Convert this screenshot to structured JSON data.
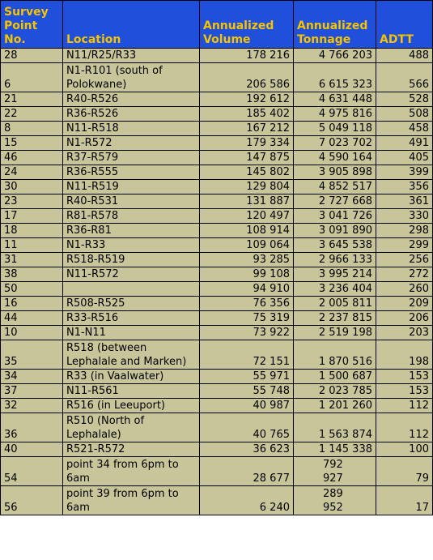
{
  "headers": {
    "survey": "Survey Point No.",
    "location": "Location",
    "volume": "Annualized Volume",
    "tonnage": "Annualized Tonnage",
    "adtt": "ADTT"
  },
  "rows": [
    {
      "point": "28",
      "location": "N11/R25/R33",
      "volume": "178 216",
      "tonnage": "4 766 203",
      "adtt": "488",
      "tall": false
    },
    {
      "point": "6",
      "location": "N1-R101 (south of Polokwane)",
      "volume": "206 586",
      "tonnage": "6 615 323",
      "adtt": "566",
      "tall": true
    },
    {
      "point": "21",
      "location": "R40-R526",
      "volume": "192 612",
      "tonnage": "4 631 448",
      "adtt": "528",
      "tall": false
    },
    {
      "point": "22",
      "location": "R36-R526",
      "volume": "185 402",
      "tonnage": "4 975 816",
      "adtt": "508",
      "tall": false
    },
    {
      "point": "8",
      "location": "N11-R518",
      "volume": "167 212",
      "tonnage": "5 049 118",
      "adtt": "458",
      "tall": false
    },
    {
      "point": "15",
      "location": "N1-R572",
      "volume": "179 334",
      "tonnage": "7 023 702",
      "adtt": "491",
      "tall": false
    },
    {
      "point": "46",
      "location": "R37-R579",
      "volume": "147 875",
      "tonnage": "4 590 164",
      "adtt": "405",
      "tall": false
    },
    {
      "point": "24",
      "location": "R36-R555",
      "volume": "145 802",
      "tonnage": "3 905 898",
      "adtt": "399",
      "tall": false
    },
    {
      "point": "30",
      "location": "N11-R519",
      "volume": "129 804",
      "tonnage": "4 852 517",
      "adtt": "356",
      "tall": false
    },
    {
      "point": "23",
      "location": "R40-R531",
      "volume": "131 887",
      "tonnage": "2 727 668",
      "adtt": "361",
      "tall": false
    },
    {
      "point": "17",
      "location": "R81-R578",
      "volume": "120 497",
      "tonnage": "3 041 726",
      "adtt": "330",
      "tall": false
    },
    {
      "point": "18",
      "location": "R36-R81",
      "volume": "108 914",
      "tonnage": "3 091 890",
      "adtt": "298",
      "tall": false
    },
    {
      "point": "11",
      "location": "N1-R33",
      "volume": "109 064",
      "tonnage": "3 645 538",
      "adtt": "299",
      "tall": false
    },
    {
      "point": "31",
      "location": "R518-R519",
      "volume": "93 285",
      "tonnage": "2 966 133",
      "adtt": "256",
      "tall": false
    },
    {
      "point": "38",
      "location": "N11-R572",
      "volume": "99 108",
      "tonnage": "3 995 214",
      "adtt": "272",
      "tall": false
    },
    {
      "point": "50",
      "location": "",
      "volume": "94 910",
      "tonnage": "3 236 404",
      "adtt": "260",
      "tall": false
    },
    {
      "point": "16",
      "location": "R508-R525",
      "volume": "76 356",
      "tonnage": "2 005 811",
      "adtt": "209",
      "tall": false
    },
    {
      "point": "44",
      "location": "R33-R516",
      "volume": "75 319",
      "tonnage": "2 237 815",
      "adtt": "206",
      "tall": false
    },
    {
      "point": "10",
      "location": "N1-N11",
      "volume": "73 922",
      "tonnage": "2 519 198",
      "adtt": "203",
      "tall": false
    },
    {
      "point": "35",
      "location": "R518 (between Lephalale and Marken)",
      "volume": "72 151",
      "tonnage": "1 870 516",
      "adtt": "198",
      "tall": true
    },
    {
      "point": "34",
      "location": "R33 (in Vaalwater)",
      "volume": "55 971",
      "tonnage": "1 500 687",
      "adtt": "153",
      "tall": false
    },
    {
      "point": "37",
      "location": "N11-R561",
      "volume": "55 748",
      "tonnage": "2 023 785",
      "adtt": "153",
      "tall": false
    },
    {
      "point": "32",
      "location": "R516 (in Leeuport)",
      "volume": "40 987",
      "tonnage": "1 201 260",
      "adtt": "112",
      "tall": false
    },
    {
      "point": "36",
      "location": "R510 (North of Lephalale)",
      "volume": "40 765",
      "tonnage": "1 563 874",
      "adtt": "112",
      "tall": true
    },
    {
      "point": "40",
      "location": "R521-R572",
      "volume": "36 623",
      "tonnage": "1 145 338",
      "adtt": "100",
      "tall": false
    },
    {
      "point": "54",
      "location": "point 34 from 6pm to 6am",
      "volume": "28 677",
      "tonnage": "792 927",
      "adtt": "79",
      "tall": true,
      "wrapTonnage": true
    },
    {
      "point": "56",
      "location": "point 39 from 6pm to 6am",
      "volume": "6 240",
      "tonnage": "289 952",
      "adtt": "17",
      "tall": true,
      "wrapTonnage": true
    }
  ]
}
